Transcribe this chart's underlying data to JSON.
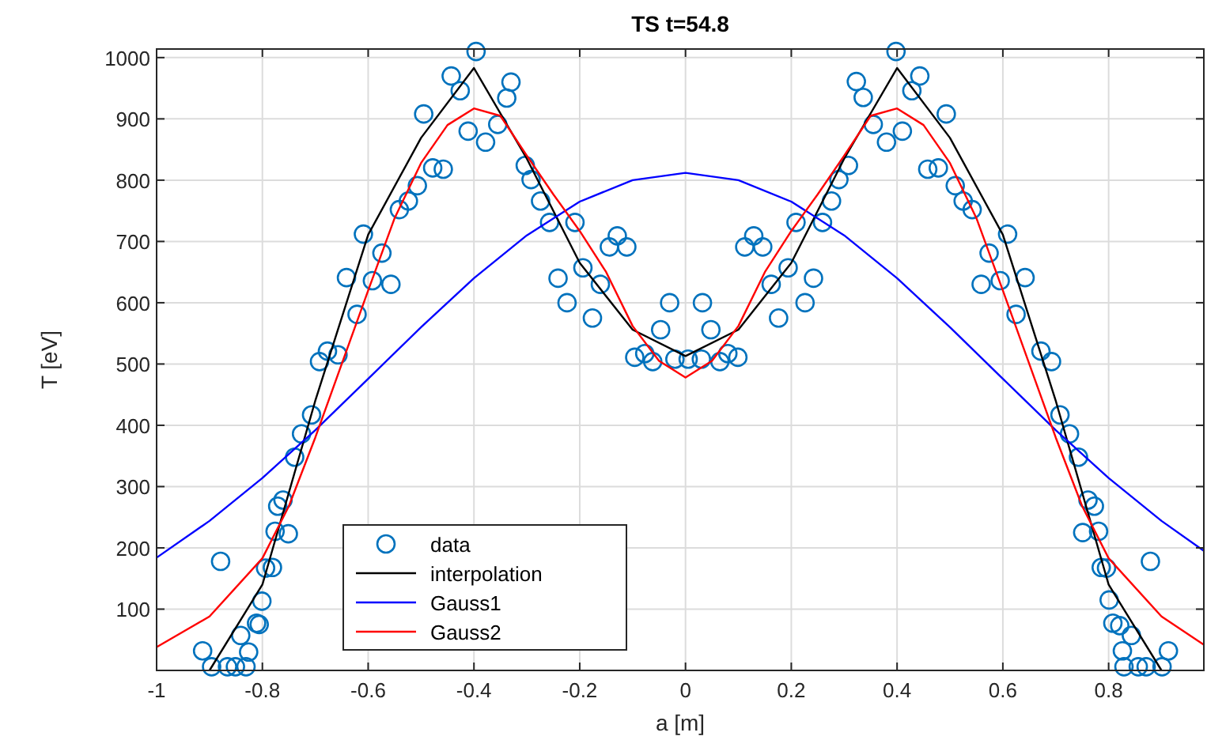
{
  "chart_data": {
    "type": "line",
    "title": "TS t=54.8",
    "xlabel": "a [m]",
    "ylabel": "T [eV]",
    "xlim": [
      -1,
      0.98
    ],
    "xticks": [
      -1,
      -0.8,
      -0.6,
      -0.4,
      -0.2,
      0,
      0.2,
      0.4,
      0.6,
      0.8
    ],
    "ylim": [
      0,
      1014
    ],
    "yticks": [
      100,
      200,
      300,
      400,
      500,
      600,
      700,
      800,
      900,
      1000
    ],
    "grid": true,
    "legend": "bottom left",
    "series": [
      {
        "name": "data",
        "type": "scatter",
        "marker": "circle",
        "color": "#0072bd",
        "x": [
          -0.913,
          -0.896,
          -0.879,
          -0.866,
          -0.851,
          -0.841,
          -0.831,
          -0.826,
          -0.811,
          -0.806,
          -0.801,
          -0.794,
          -0.781,
          -0.776,
          -0.771,
          -0.761,
          -0.751,
          -0.739,
          -0.726,
          -0.707,
          -0.692,
          -0.677,
          -0.657,
          -0.641,
          -0.621,
          -0.609,
          -0.592,
          -0.574,
          -0.557,
          -0.541,
          -0.524,
          -0.507,
          -0.495,
          -0.478,
          -0.458,
          -0.443,
          -0.426,
          -0.411,
          -0.396,
          -0.378,
          -0.355,
          -0.338,
          -0.33,
          -0.303,
          -0.292,
          -0.274,
          -0.257,
          -0.241,
          -0.224,
          -0.209,
          -0.194,
          -0.176,
          -0.161,
          -0.144,
          -0.129,
          -0.111,
          -0.096,
          -0.077,
          -0.062,
          -0.047,
          -0.03,
          -0.02,
          0.005,
          0.03,
          0.032,
          0.048,
          0.065,
          0.08,
          0.099,
          0.112,
          0.129,
          0.146,
          0.162,
          0.176,
          0.194,
          0.209,
          0.226,
          0.242,
          0.259,
          0.276,
          0.29,
          0.308,
          0.323,
          0.336,
          0.355,
          0.38,
          0.398,
          0.41,
          0.428,
          0.443,
          0.458,
          0.478,
          0.493,
          0.51,
          0.525,
          0.542,
          0.559,
          0.574,
          0.595,
          0.609,
          0.625,
          0.642,
          0.672,
          0.692,
          0.708,
          0.726,
          0.743,
          0.751,
          0.761,
          0.773,
          0.781,
          0.786,
          0.796,
          0.801,
          0.808,
          0.821,
          0.826,
          0.829,
          0.843,
          0.856,
          0.871,
          0.879,
          0.901,
          0.913
        ],
        "values": [
          32,
          6,
          178,
          6,
          6,
          57,
          6,
          30,
          77,
          75,
          113,
          167,
          168,
          227,
          268,
          278,
          223,
          348,
          386,
          417,
          504,
          521,
          515,
          641,
          581,
          712,
          636,
          681,
          630,
          752,
          766,
          791,
          908,
          820,
          818,
          970,
          946,
          880,
          1010,
          862,
          891,
          934,
          960,
          824,
          801,
          766,
          731,
          640,
          600,
          731,
          657,
          575,
          630,
          691,
          709,
          691,
          511,
          517,
          504,
          556,
          600,
          508,
          508,
          508,
          600,
          556,
          504,
          517,
          511,
          691,
          709,
          691,
          630,
          575,
          657,
          731,
          600,
          640,
          731,
          766,
          801,
          824,
          961,
          935,
          891,
          862,
          1010,
          880,
          946,
          970,
          818,
          820,
          908,
          791,
          766,
          752,
          630,
          681,
          636,
          712,
          581,
          641,
          521,
          504,
          417,
          386,
          348,
          225,
          278,
          268,
          227,
          168,
          167,
          115,
          77,
          73,
          32,
          6,
          57,
          6,
          6,
          178,
          6,
          32
        ]
      },
      {
        "name": "interpolation",
        "color": "#000000",
        "x": [
          -0.9,
          -0.8,
          -0.7,
          -0.6,
          -0.5,
          -0.4,
          -0.3,
          -0.2,
          -0.1,
          0,
          0.1,
          0.2,
          0.3,
          0.4,
          0.5,
          0.6,
          0.7,
          0.8,
          0.9
        ],
        "values": [
          0,
          140,
          440,
          711,
          869,
          983,
          835,
          665,
          556,
          513,
          556,
          665,
          835,
          983,
          869,
          711,
          440,
          140,
          0
        ]
      },
      {
        "name": "Gauss1",
        "color": "#0000ff",
        "x": [
          -1,
          -0.9,
          -0.8,
          -0.7,
          -0.6,
          -0.5,
          -0.4,
          -0.3,
          -0.2,
          -0.1,
          0,
          0.1,
          0.2,
          0.3,
          0.4,
          0.5,
          0.6,
          0.7,
          0.8,
          0.9,
          0.98
        ],
        "values": [
          184,
          244,
          314,
          392,
          476,
          560,
          640,
          710,
          765,
          800,
          812,
          800,
          765,
          710,
          640,
          560,
          476,
          392,
          314,
          244,
          195
        ]
      },
      {
        "name": "Gauss2",
        "color": "#ff0000",
        "x": [
          -1,
          -0.9,
          -0.8,
          -0.75,
          -0.7,
          -0.65,
          -0.6,
          -0.55,
          -0.5,
          -0.45,
          -0.4,
          -0.35,
          -0.3,
          -0.25,
          -0.2,
          -0.15,
          -0.1,
          -0.05,
          0,
          0.05,
          0.1,
          0.15,
          0.2,
          0.25,
          0.3,
          0.35,
          0.4,
          0.45,
          0.5,
          0.55,
          0.6,
          0.65,
          0.7,
          0.75,
          0.8,
          0.9,
          0.98
        ],
        "values": [
          38,
          88,
          183,
          268,
          380,
          500,
          620,
          738,
          828,
          890,
          917,
          905,
          840,
          777,
          717,
          650,
          562,
          505,
          478,
          505,
          562,
          650,
          717,
          777,
          840,
          905,
          917,
          890,
          828,
          738,
          620,
          500,
          380,
          268,
          183,
          88,
          42
        ]
      }
    ]
  }
}
